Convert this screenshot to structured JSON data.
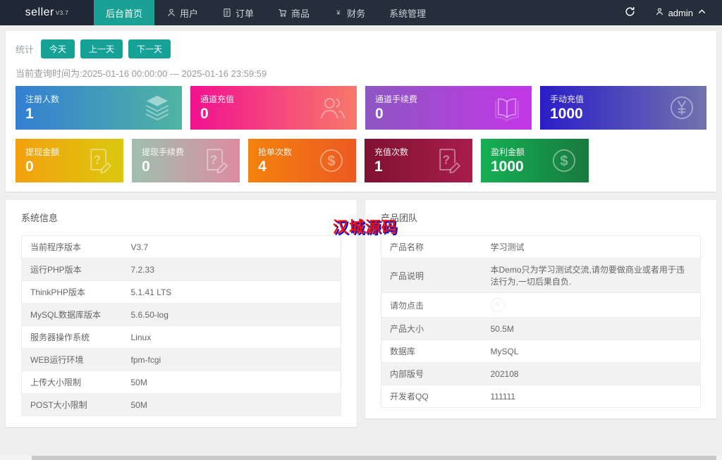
{
  "navbar": {
    "logo": "seller",
    "logo_version": "V3.7",
    "items": [
      {
        "label": "后台首页",
        "icon": null,
        "active": true
      },
      {
        "label": "用户",
        "icon": "person-icon",
        "active": false
      },
      {
        "label": "订单",
        "icon": "file-icon",
        "active": false
      },
      {
        "label": "商品",
        "icon": "cart-icon",
        "active": false
      },
      {
        "label": "财务",
        "icon": "yen-icon",
        "active": false
      },
      {
        "label": "系统管理",
        "icon": null,
        "active": false
      }
    ],
    "user": "admin"
  },
  "stats": {
    "label": "统计",
    "buttons": [
      "今天",
      "上一天",
      "下一天"
    ],
    "query_time": "当前查询时间为:2025-01-16 00:00:00 --- 2025-01-16 23:59:59",
    "cards_row1": [
      {
        "label": "注册人数",
        "value": "1",
        "icon": "layers-icon",
        "color_from": "#337fd3",
        "color_to": "#4fb5a2"
      },
      {
        "label": "通道充值",
        "value": "0",
        "icon": "users-icon",
        "color_from": "#f11190",
        "color_to": "#f7796a"
      },
      {
        "label": "通道手续费",
        "value": "0",
        "icon": "book-icon",
        "color_from": "#8d57c2",
        "color_to": "#c336e6"
      },
      {
        "label": "手动充值",
        "value": "1000",
        "icon": "yen-circle-icon",
        "color_from": "#2b1dc6",
        "color_to": "#7173ae"
      }
    ],
    "cards_row2": [
      {
        "label": "提现金额",
        "value": "0",
        "icon": "doc-question-icon",
        "color_from": "#f2a00d",
        "color_to": "#dbc90f"
      },
      {
        "label": "提现手续费",
        "value": "0",
        "icon": "doc-question-icon",
        "color_from": "#9fc0ae",
        "color_to": "#dd8ba1"
      },
      {
        "label": "抢单次数",
        "value": "4",
        "icon": "dollar-circle-icon",
        "color_from": "#f4820e",
        "color_to": "#ec5a22"
      },
      {
        "label": "充值次数",
        "value": "1",
        "icon": "doc-question-icon",
        "color_from": "#801133",
        "color_to": "#a81d4b"
      },
      {
        "label": "盈利金额",
        "value": "1000",
        "icon": "dollar-circle-icon",
        "color_from": "#16b054",
        "color_to": "#177a3e"
      }
    ]
  },
  "system_info": {
    "title": "系统信息",
    "rows": [
      {
        "label": "当前程序版本",
        "value": "V3.7"
      },
      {
        "label": "运行PHP版本",
        "value": "7.2.33"
      },
      {
        "label": "ThinkPHP版本",
        "value": "5.1.41 LTS"
      },
      {
        "label": "MySQL数据库版本",
        "value": "5.6.50-log"
      },
      {
        "label": "服务器操作系统",
        "value": "Linux"
      },
      {
        "label": "WEB运行环境",
        "value": "fpm-fcgi"
      },
      {
        "label": "上传大小限制",
        "value": "50M"
      },
      {
        "label": "POST大小限制",
        "value": "50M"
      }
    ]
  },
  "product_team": {
    "title": "产品团队",
    "rows": [
      {
        "label": "产品名称",
        "value": "学习测试"
      },
      {
        "label": "产品说明",
        "value": "本Demo只为学习测试交流,请勿要做商业或者用于违法行为,一切后果自负."
      },
      {
        "label": "请勿点击",
        "value": "",
        "badge": true
      },
      {
        "label": "产品大小",
        "value": "50.5M"
      },
      {
        "label": "数据库",
        "value": "MySQL"
      },
      {
        "label": "内部版号",
        "value": "202108"
      },
      {
        "label": "开发者QQ",
        "value": "111111"
      }
    ]
  },
  "watermark": "汉城源码",
  "colors": {
    "navbar_bg": "#252e3b",
    "active_nav": "#1aa094",
    "button_teal": "#16a296",
    "watermark_red": "#e81010",
    "watermark_blue": "#0b0bcf"
  }
}
